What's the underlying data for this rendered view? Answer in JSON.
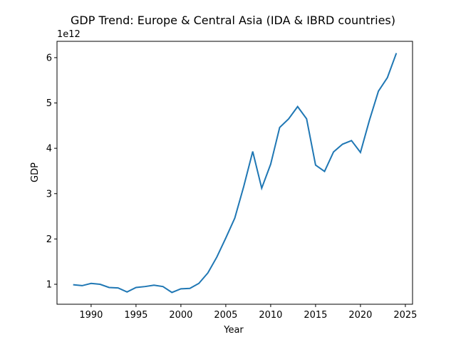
{
  "chart_data": {
    "type": "line",
    "title": "GDP Trend: Europe & Central Asia (IDA & IBRD countries)",
    "xlabel": "Year",
    "ylabel": "GDP",
    "y_offset_label": "1e12",
    "xlim": [
      1986.2,
      2025.8
    ],
    "ylim": [
      0.56,
      6.36
    ],
    "x_ticks": [
      1990,
      1995,
      2000,
      2005,
      2010,
      2015,
      2020,
      2025
    ],
    "y_ticks": [
      1,
      2,
      3,
      4,
      5,
      6
    ],
    "grid": false,
    "line_color": "#1f77b4",
    "series": [
      {
        "x": [
          1988,
          1989,
          1990,
          1991,
          1992,
          1993,
          1994,
          1995,
          1996,
          1997,
          1998,
          1999,
          2000,
          2001,
          2002,
          2003,
          2004,
          2005,
          2006,
          2007,
          2008,
          2009,
          2010,
          2011,
          2012,
          2013,
          2014,
          2015,
          2016,
          2017,
          2018,
          2019,
          2020,
          2021,
          2022,
          2023,
          2024
        ],
        "values": [
          0.99,
          0.97,
          1.02,
          1.0,
          0.93,
          0.92,
          0.83,
          0.93,
          0.95,
          0.98,
          0.95,
          0.82,
          0.9,
          0.91,
          1.02,
          1.25,
          1.6,
          2.02,
          2.46,
          3.16,
          3.93,
          3.12,
          3.65,
          4.46,
          4.65,
          4.92,
          4.65,
          3.63,
          3.49,
          3.92,
          4.09,
          4.17,
          3.91,
          4.62,
          5.26,
          5.56,
          6.1
        ]
      }
    ]
  }
}
